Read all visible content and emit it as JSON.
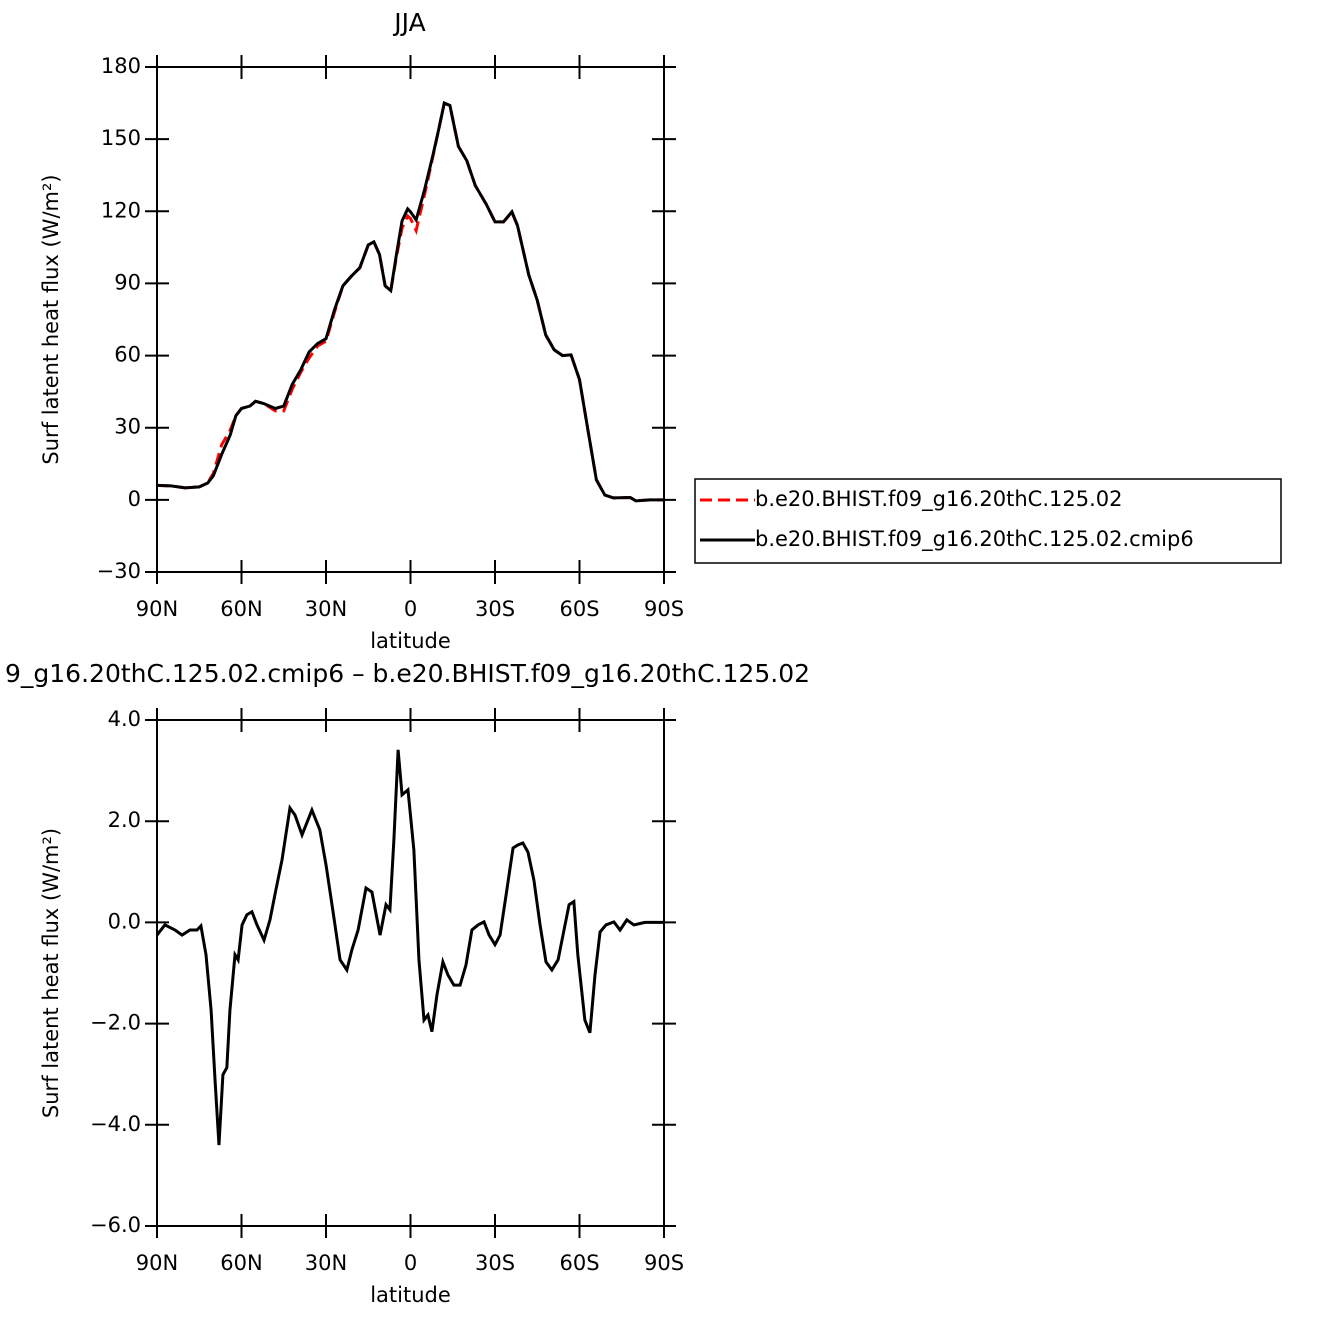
{
  "chart_data": [
    {
      "type": "line",
      "title": "JJA",
      "xlabel": "latitude",
      "ylabel": "Surf latent heat flux (W/m²)",
      "x": [
        90,
        85,
        80,
        75,
        72,
        70,
        67,
        64,
        62,
        60,
        57,
        55,
        52,
        48,
        45,
        42,
        39,
        36,
        33,
        30,
        27,
        24,
        21,
        18,
        15,
        13,
        11,
        9,
        7,
        5,
        3,
        1,
        0,
        -2,
        -5,
        -8,
        -10,
        -12,
        -14,
        -17,
        -20,
        -23,
        -27,
        -30,
        -33,
        -36,
        -38,
        -42,
        -45,
        -48,
        -51,
        -54,
        -57,
        -60,
        -63,
        -66,
        -69,
        -72,
        -78,
        -80,
        -85,
        -90
      ],
      "series": [
        {
          "name": "b.e20.BHIST.f09_g16.20thC.125.02",
          "color": "#ff0000",
          "linestyle": "dashed",
          "values": [
            6,
            5.8,
            5,
            5.4,
            7,
            11,
            23,
            29,
            35,
            38,
            39,
            41,
            40,
            37,
            37,
            46,
            53,
            59,
            64,
            66,
            78,
            89,
            93,
            96.5,
            106,
            107.3,
            102,
            89,
            87,
            101,
            113,
            118,
            117,
            112,
            127,
            143,
            154,
            165,
            164,
            147,
            141,
            130.7,
            122.7,
            115.6,
            115.6,
            119.5,
            114,
            93.5,
            83,
            68.6,
            62.4,
            60,
            60.3,
            50,
            29,
            8.3,
            2,
            0.8,
            1,
            -0.4,
            0,
            0
          ]
        },
        {
          "name": "b.e20.BHIST.f09_g16.20thC.125.02.cmip6",
          "color": "#000000",
          "linestyle": "solid",
          "values": [
            6,
            5.8,
            5,
            5.4,
            7,
            10,
            19,
            27,
            35,
            38,
            39,
            41,
            40,
            38,
            39,
            48,
            54,
            61.5,
            65,
            67,
            79,
            89,
            93,
            96.5,
            106,
            107.3,
            102,
            89,
            87,
            102,
            116,
            121,
            119.8,
            116.4,
            129,
            143.5,
            154,
            165,
            164,
            147,
            141,
            130.7,
            122.7,
            115.6,
            115.6,
            119.8,
            114,
            93.5,
            83,
            68.6,
            62.4,
            60,
            60.3,
            50,
            29,
            8.3,
            2,
            0.8,
            1,
            -0.4,
            0,
            0
          ]
        }
      ],
      "xlim": [
        90,
        -90
      ],
      "xticks": [
        {
          "value": 90,
          "label": "90N"
        },
        {
          "value": 60,
          "label": "60N"
        },
        {
          "value": 30,
          "label": "30N"
        },
        0,
        {
          "value": -30,
          "label": "30S"
        },
        {
          "value": -60,
          "label": "60S"
        },
        {
          "value": -90,
          "label": "90S"
        }
      ],
      "ylim": [
        -30,
        180
      ],
      "yticks": [
        {
          "value": -30,
          "label": "−30"
        },
        0,
        30,
        60,
        90,
        120,
        150,
        180
      ]
    },
    {
      "type": "line",
      "title": "9_g16.20thC.125.02.cmip6 – b.e20.BHIST.f09_g16.20thC.125.02",
      "xlabel": "latitude",
      "ylabel": "Surf latent heat flux (W/m²)",
      "x": [
        90,
        87.2,
        83.6,
        81.1,
        78.3,
        75.8,
        74.4,
        72.6,
        70.8,
        69.4,
        68.0,
        66.6,
        65.2,
        64.1,
        62.3,
        61.2,
        59.8,
        58.1,
        56.3,
        54.5,
        52.0,
        49.9,
        47.8,
        45.6,
        42.8,
        41.0,
        38.5,
        35.0,
        32.2,
        30.0,
        27.5,
        25.0,
        22.6,
        20.8,
        18.6,
        15.8,
        13.7,
        10.8,
        8.7,
        7.3,
        5.9,
        4.4,
        3.0,
        0.9,
        -1.2,
        -3.0,
        -4.8,
        -6.2,
        -7.6,
        -9.4,
        -11.5,
        -13.3,
        -15.4,
        -17.6,
        -19.7,
        -21.8,
        -24.0,
        -26.1,
        -27.9,
        -30.0,
        -31.8,
        -34.2,
        -36.4,
        -38.1,
        -39.9,
        -41.7,
        -43.8,
        -46.0,
        -48.1,
        -50.2,
        -52.4,
        -54.5,
        -56.3,
        -58.0,
        -59.4,
        -61.9,
        -63.7,
        -65.5,
        -67.3,
        -69.4,
        -72.2,
        -74.4,
        -76.8,
        -79.3,
        -83.2,
        -90
      ],
      "values": [
        -0.25,
        -0.05,
        -0.15,
        -0.25,
        -0.15,
        -0.15,
        -0.07,
        -0.64,
        -1.73,
        -3.11,
        -4.4,
        -3.01,
        -2.87,
        -1.73,
        -0.64,
        -0.74,
        -0.05,
        0.15,
        0.21,
        -0.05,
        -0.35,
        0.05,
        0.64,
        1.24,
        2.26,
        2.12,
        1.73,
        2.22,
        1.83,
        1.14,
        0.21,
        -0.74,
        -0.94,
        -0.54,
        -0.15,
        0.68,
        0.6,
        -0.25,
        0.35,
        0.25,
        1.63,
        3.41,
        2.52,
        2.62,
        1.43,
        -0.74,
        -1.93,
        -1.83,
        -2.16,
        -1.43,
        -0.78,
        -1.04,
        -1.24,
        -1.24,
        -0.84,
        -0.15,
        -0.05,
        0.01,
        -0.25,
        -0.44,
        -0.25,
        0.64,
        1.47,
        1.53,
        1.57,
        1.39,
        0.84,
        -0.05,
        -0.78,
        -0.94,
        -0.74,
        -0.15,
        0.35,
        0.41,
        -0.64,
        -1.93,
        -2.18,
        -1.04,
        -0.19,
        -0.05,
        0.01,
        -0.15,
        0.05,
        -0.05,
        0,
        0
      ],
      "color": "#000000",
      "xlim": [
        90,
        -90
      ],
      "xticks": [
        {
          "value": 90,
          "label": "90N"
        },
        {
          "value": 60,
          "label": "60N"
        },
        {
          "value": 30,
          "label": "30N"
        },
        0,
        {
          "value": -30,
          "label": "30S"
        },
        {
          "value": -60,
          "label": "60S"
        },
        {
          "value": -90,
          "label": "90S"
        }
      ],
      "ylim": [
        -6,
        4
      ],
      "yticks": [
        {
          "value": -6,
          "label": "−6.0"
        },
        {
          "value": -4,
          "label": "−4.0"
        },
        {
          "value": -2,
          "label": "−2.0"
        },
        {
          "value": 0,
          "label": "0.0"
        },
        {
          "value": 2,
          "label": "2.0"
        },
        {
          "value": 4,
          "label": "4.0"
        }
      ]
    }
  ]
}
